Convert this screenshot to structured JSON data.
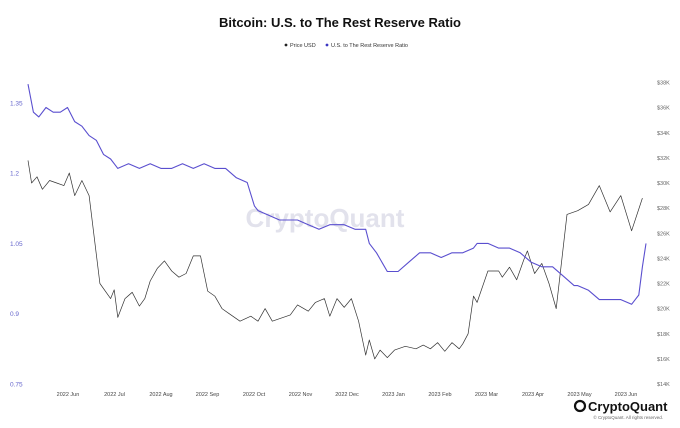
{
  "chart_data": {
    "type": "line",
    "title": "Bitcoin: U.S. to The Rest Reserve Ratio",
    "watermark": "CryptoQuant",
    "brand": "CryptoQuant",
    "copyright": "© CryptoQuant. All rights reserved.",
    "x_ticks": [
      "2022 Jun",
      "2022 Jul",
      "2022 Aug",
      "2022 Sep",
      "2022 Oct",
      "2022 Nov",
      "2022 Dec",
      "2023 Jan",
      "2023 Feb",
      "2023 Mar",
      "2023 Apr",
      "2023 May",
      "2023 Jun"
    ],
    "y_left": {
      "ticks": [
        "1.35",
        "1.2",
        "1.05",
        "0.9",
        "0.75"
      ],
      "tick_values": [
        1.35,
        1.2,
        1.05,
        0.9,
        0.75
      ],
      "range": [
        0.75,
        1.42
      ]
    },
    "y_right": {
      "ticks": [
        "$38K",
        "$36K",
        "$34K",
        "$32K",
        "$30K",
        "$28K",
        "$26K",
        "$24K",
        "$22K",
        "$20K",
        "$18K",
        "$16K",
        "$14K"
      ],
      "tick_values": [
        38,
        36,
        34,
        32,
        30,
        28,
        26,
        24,
        22,
        20,
        18,
        16,
        14
      ],
      "range": [
        14,
        39
      ]
    },
    "series": [
      {
        "name": "Price USD",
        "axis": "right",
        "color": "#333333",
        "marker_color": "#222222",
        "x": [
          0,
          2,
          5,
          8,
          12,
          16,
          20,
          23,
          26,
          30,
          34,
          40,
          46,
          48,
          50,
          54,
          58,
          62,
          65,
          68,
          72,
          76,
          80,
          84,
          88,
          92,
          96,
          100,
          104,
          108,
          112,
          118,
          124,
          128,
          132,
          136,
          140,
          146,
          150,
          156,
          160,
          165,
          168,
          172,
          176,
          180,
          184,
          188,
          190,
          193,
          196,
          200,
          204,
          210,
          216,
          220,
          224,
          228,
          232,
          236,
          240,
          242,
          245,
          248,
          250,
          256,
          262,
          264,
          268,
          272,
          276,
          278,
          282,
          286,
          290,
          294,
          300,
          306,
          312,
          318,
          324,
          330,
          336,
          342
        ],
        "values": [
          31.8,
          30.0,
          30.5,
          29.5,
          30.2,
          30.0,
          29.8,
          30.8,
          29.0,
          30.2,
          29.0,
          22.0,
          20.8,
          21.5,
          19.3,
          20.8,
          21.3,
          20.2,
          20.8,
          22.2,
          23.2,
          23.8,
          23.0,
          22.5,
          22.8,
          24.2,
          24.2,
          21.4,
          21.0,
          20.0,
          19.6,
          19.0,
          19.4,
          19.0,
          20.0,
          19.0,
          19.2,
          19.5,
          20.3,
          19.8,
          20.5,
          20.8,
          19.4,
          20.8,
          20.1,
          20.8,
          19.0,
          16.3,
          17.5,
          16.0,
          16.7,
          16.1,
          16.7,
          17.0,
          16.8,
          17.1,
          16.8,
          17.3,
          16.6,
          17.3,
          16.8,
          17.2,
          18.0,
          21.0,
          20.5,
          23.0,
          23.0,
          22.5,
          23.3,
          22.3,
          23.9,
          24.6,
          22.8,
          23.6,
          22.0,
          20.0,
          27.5,
          27.8,
          28.3,
          29.8,
          27.7,
          29.0,
          26.2,
          28.8
        ]
      },
      {
        "name": "U.S. to The Rest Reserve Ratio",
        "axis": "left",
        "color": "#5a4fcf",
        "marker_color": "#3b36c2",
        "x": [
          0,
          3,
          6,
          10,
          14,
          18,
          22,
          26,
          30,
          34,
          38,
          42,
          46,
          48,
          50,
          56,
          62,
          68,
          74,
          80,
          86,
          92,
          98,
          104,
          110,
          116,
          122,
          126,
          128,
          134,
          140,
          146,
          150,
          156,
          162,
          168,
          172,
          176,
          182,
          188,
          190,
          194,
          200,
          206,
          212,
          218,
          224,
          230,
          236,
          242,
          248,
          250,
          256,
          262,
          268,
          274,
          280,
          286,
          292,
          298,
          304,
          306,
          312,
          318,
          324,
          330,
          336,
          340,
          342,
          344
        ],
        "values": [
          1.39,
          1.33,
          1.32,
          1.34,
          1.33,
          1.33,
          1.34,
          1.31,
          1.3,
          1.28,
          1.27,
          1.24,
          1.23,
          1.22,
          1.21,
          1.22,
          1.21,
          1.22,
          1.21,
          1.21,
          1.22,
          1.21,
          1.22,
          1.21,
          1.21,
          1.19,
          1.18,
          1.13,
          1.12,
          1.11,
          1.1,
          1.1,
          1.1,
          1.09,
          1.08,
          1.09,
          1.09,
          1.09,
          1.08,
          1.08,
          1.05,
          1.03,
          0.99,
          0.99,
          1.01,
          1.03,
          1.03,
          1.02,
          1.03,
          1.03,
          1.04,
          1.05,
          1.05,
          1.04,
          1.04,
          1.03,
          1.01,
          1.0,
          1.0,
          0.98,
          0.96,
          0.96,
          0.95,
          0.93,
          0.93,
          0.93,
          0.92,
          0.94,
          1.0,
          1.05
        ]
      }
    ]
  }
}
